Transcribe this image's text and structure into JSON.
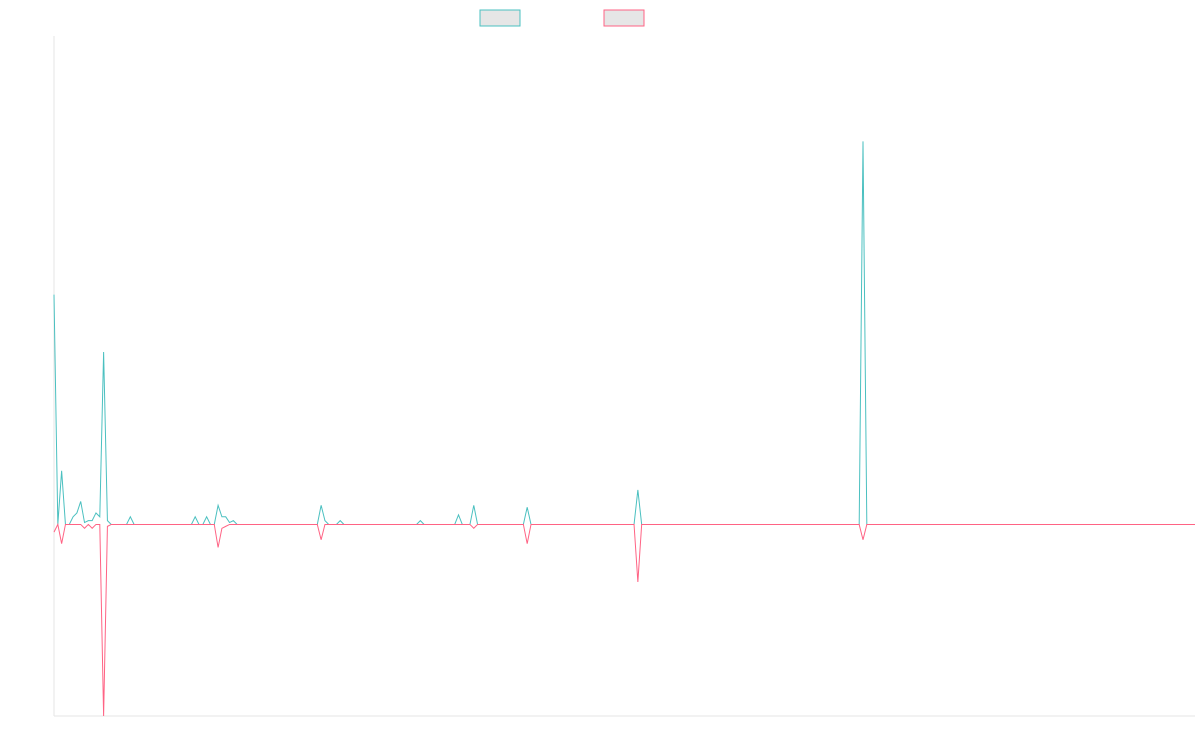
{
  "chart_data": {
    "type": "line",
    "title": "",
    "xlabel": "",
    "ylabel": "",
    "grid": false,
    "legend": "top-center",
    "ylim": [
      -1.0,
      2.55
    ],
    "series": [
      {
        "color": "#4bc0c0",
        "fill": "#e6e6e6",
        "values": [
          1.2,
          0.0,
          0.28,
          0.0,
          0.0,
          0.04,
          0.06,
          0.12,
          0.01,
          0.02,
          0.02,
          0.06,
          0.04,
          0.9,
          0.02,
          0.0,
          0.0,
          0.0,
          0.0,
          0.0,
          0.04,
          0.0,
          0.0,
          0.0,
          0.0,
          0.0,
          0.0,
          0.0,
          0.0,
          0.0,
          0.0,
          0.0,
          0.0,
          0.0,
          0.0,
          0.0,
          0.0,
          0.04,
          0.0,
          0.0,
          0.04,
          0.0,
          0.0,
          0.1,
          0.04,
          0.04,
          0.01,
          0.02,
          0.0,
          0.0,
          0.0,
          0.0,
          0.0,
          0.0,
          0.0,
          0.0,
          0.0,
          0.0,
          0.0,
          0.0,
          0.0,
          0.0,
          0.0,
          0.0,
          0.0,
          0.0,
          0.0,
          0.0,
          0.0,
          0.0,
          0.1,
          0.02,
          0.0,
          0.0,
          0.0,
          0.02,
          0.0,
          0.0,
          0.0,
          0.0,
          0.0,
          0.0,
          0.0,
          0.0,
          0.0,
          0.0,
          0.0,
          0.0,
          0.0,
          0.0,
          0.0,
          0.0,
          0.0,
          0.0,
          0.0,
          0.0,
          0.02,
          0.0,
          0.0,
          0.0,
          0.0,
          0.0,
          0.0,
          0.0,
          0.0,
          0.0,
          0.05,
          0.0,
          0.0,
          0.0,
          0.1,
          0.0,
          0.0,
          0.0,
          0.0,
          0.0,
          0.0,
          0.0,
          0.0,
          0.0,
          0.0,
          0.0,
          0.0,
          0.0,
          0.09,
          0.0,
          0.0,
          0.0,
          0.0,
          0.0,
          0.0,
          0.0,
          0.0,
          0.0,
          0.0,
          0.0,
          0.0,
          0.0,
          0.0,
          0.0,
          0.0,
          0.0,
          0.0,
          0.0,
          0.0,
          0.0,
          0.0,
          0.0,
          0.0,
          0.0,
          0.0,
          0.0,
          0.0,
          0.18,
          0.0,
          0.0,
          0.0,
          0.0,
          0.0,
          0.0,
          0.0,
          0.0,
          0.0,
          0.0,
          0.0,
          0.0,
          0.0,
          0.0,
          0.0,
          0.0,
          0.0,
          0.0,
          0.0,
          0.0,
          0.0,
          0.0,
          0.0,
          0.0,
          0.0,
          0.0,
          0.0,
          0.0,
          0.0,
          0.0,
          0.0,
          0.0,
          0.0,
          0.0,
          0.0,
          0.0,
          0.0,
          0.0,
          0.0,
          0.0,
          0.0,
          0.0,
          0.0,
          0.0,
          0.0,
          0.0,
          0.0,
          0.0,
          0.0,
          0.0,
          0.0,
          0.0,
          0.0,
          0.0,
          0.0,
          0.0,
          0.0,
          0.0,
          2.0,
          0.0,
          0.0,
          0.0,
          0.0,
          0.0,
          0.0,
          0.0,
          0.0,
          0.0,
          0.0,
          0.0,
          0.0,
          0.0,
          0.0,
          0.0,
          0.0,
          0.0,
          0.0,
          0.0,
          0.0,
          0.0,
          0.0,
          0.0,
          0.0,
          0.0,
          0.0,
          0.0,
          0.0,
          0.0,
          0.0,
          0.0,
          0.0,
          0.0,
          0.0,
          0.0,
          0.0,
          0.0,
          0.0,
          0.0,
          0.0,
          0.0,
          0.0,
          0.0,
          0.0,
          0.0,
          0.0,
          0.0,
          0.0,
          0.0,
          0.0,
          0.0,
          0.0,
          0.0,
          0.0,
          0.0,
          0.0,
          0.0,
          0.0,
          0.0,
          0.0,
          0.0,
          0.0,
          0.0,
          0.0,
          0.0,
          0.0,
          0.0,
          0.0,
          0.0,
          0.0,
          0.0,
          0.0,
          0.0,
          0.0,
          0.0,
          0.0,
          0.0,
          0.0,
          0.0,
          0.0,
          0.0,
          0.0,
          0.0,
          0.0,
          0.0,
          0.0,
          0.0
        ]
      },
      {
        "color": "#ff6384",
        "fill": "#e6e6e6",
        "values": [
          -0.04,
          0.0,
          -0.1,
          0.0,
          0.0,
          0.0,
          0.0,
          0.0,
          -0.02,
          0.0,
          -0.02,
          0.0,
          0.0,
          -1.0,
          -0.01,
          0.0,
          0.0,
          0.0,
          0.0,
          0.0,
          0.0,
          0.0,
          0.0,
          0.0,
          0.0,
          0.0,
          0.0,
          0.0,
          0.0,
          0.0,
          0.0,
          0.0,
          0.0,
          0.0,
          0.0,
          0.0,
          0.0,
          0.0,
          0.0,
          0.0,
          0.0,
          0.0,
          0.0,
          -0.12,
          -0.02,
          -0.01,
          0.0,
          0.0,
          0.0,
          0.0,
          0.0,
          0.0,
          0.0,
          0.0,
          0.0,
          0.0,
          0.0,
          0.0,
          0.0,
          0.0,
          0.0,
          0.0,
          0.0,
          0.0,
          0.0,
          0.0,
          0.0,
          0.0,
          0.0,
          0.0,
          -0.08,
          0.0,
          0.0,
          0.0,
          0.0,
          0.0,
          0.0,
          0.0,
          0.0,
          0.0,
          0.0,
          0.0,
          0.0,
          0.0,
          0.0,
          0.0,
          0.0,
          0.0,
          0.0,
          0.0,
          0.0,
          0.0,
          0.0,
          0.0,
          0.0,
          0.0,
          0.0,
          0.0,
          0.0,
          0.0,
          0.0,
          0.0,
          0.0,
          0.0,
          0.0,
          0.0,
          0.0,
          0.0,
          0.0,
          0.0,
          -0.02,
          0.0,
          0.0,
          0.0,
          0.0,
          0.0,
          0.0,
          0.0,
          0.0,
          0.0,
          0.0,
          0.0,
          0.0,
          0.0,
          -0.1,
          0.0,
          0.0,
          0.0,
          0.0,
          0.0,
          0.0,
          0.0,
          0.0,
          0.0,
          0.0,
          0.0,
          0.0,
          0.0,
          0.0,
          0.0,
          0.0,
          0.0,
          0.0,
          0.0,
          0.0,
          0.0,
          0.0,
          0.0,
          0.0,
          0.0,
          0.0,
          0.0,
          0.0,
          -0.3,
          0.0,
          0.0,
          0.0,
          0.0,
          0.0,
          0.0,
          0.0,
          0.0,
          0.0,
          0.0,
          0.0,
          0.0,
          0.0,
          0.0,
          0.0,
          0.0,
          0.0,
          0.0,
          0.0,
          0.0,
          0.0,
          0.0,
          0.0,
          0.0,
          0.0,
          0.0,
          0.0,
          0.0,
          0.0,
          0.0,
          0.0,
          0.0,
          0.0,
          0.0,
          0.0,
          0.0,
          0.0,
          0.0,
          0.0,
          0.0,
          0.0,
          0.0,
          0.0,
          0.0,
          0.0,
          0.0,
          0.0,
          0.0,
          0.0,
          0.0,
          0.0,
          0.0,
          0.0,
          0.0,
          0.0,
          0.0,
          0.0,
          0.0,
          -0.08,
          0.0,
          0.0,
          0.0,
          0.0,
          0.0,
          0.0,
          0.0,
          0.0,
          0.0,
          0.0,
          0.0,
          0.0,
          0.0,
          0.0,
          0.0,
          0.0,
          0.0,
          0.0,
          0.0,
          0.0,
          0.0,
          0.0,
          0.0,
          0.0,
          0.0,
          0.0,
          0.0,
          0.0,
          0.0,
          0.0,
          0.0,
          0.0,
          0.0,
          0.0,
          0.0,
          0.0,
          0.0,
          0.0,
          0.0,
          0.0,
          0.0,
          0.0,
          0.0,
          0.0,
          0.0,
          0.0,
          0.0,
          0.0,
          0.0,
          0.0,
          0.0,
          0.0,
          0.0,
          0.0,
          0.0,
          0.0,
          0.0,
          0.0,
          0.0,
          0.0,
          0.0,
          0.0,
          0.0,
          0.0,
          0.0,
          0.0,
          0.0,
          0.0,
          0.0,
          0.0,
          0.0,
          0.0,
          0.0,
          0.0,
          0.0,
          0.0,
          0.0,
          0.0,
          0.0,
          0.0,
          0.0,
          0.0,
          0.0,
          0.0,
          0.0,
          0.0,
          0.0
        ]
      }
    ]
  }
}
